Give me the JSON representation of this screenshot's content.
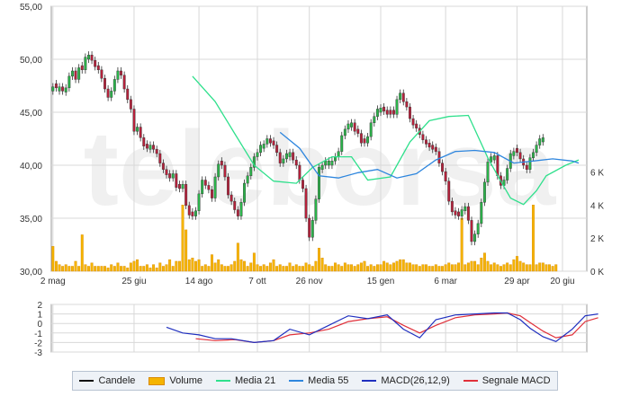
{
  "watermark": "teleborsa",
  "colors": {
    "candle_up": "#2bb34a",
    "candle_down": "#b5213b",
    "volume": "#f5b400",
    "ma21": "#2fe08c",
    "ma55": "#2e86de",
    "macd": "#1f2fbf",
    "signal": "#e0303a",
    "grid": "#d8d8d8"
  },
  "chart_data": [
    {
      "type": "candlestick",
      "title": "",
      "x_ticks": [
        "2 mag",
        "25 giu",
        "14 ago",
        "7 ott",
        "26 nov",
        "15 gen",
        "6 mar",
        "29 apr",
        "20 giu"
      ],
      "x_tick_index": [
        0,
        25,
        45,
        63,
        79,
        101,
        121,
        143,
        157
      ],
      "y_left_ticks": [
        "55,00",
        "50,00",
        "45,00",
        "40,00",
        "35,00",
        "30,00"
      ],
      "y_left_range": [
        30,
        55
      ],
      "y_right_ticks": [
        "6 K",
        "4 K",
        "2 K",
        "0 K"
      ],
      "y_right_range": [
        0,
        16
      ],
      "grid": true,
      "series": [
        {
          "name": "Candele",
          "kind": "ohlc",
          "close": [
            47.4,
            47.3,
            47.4,
            47.0,
            47.3,
            48.4,
            48.9,
            48.1,
            49.2,
            49.0,
            50.2,
            50.4,
            49.9,
            49.3,
            49.0,
            48.2,
            47.2,
            46.4,
            47.0,
            48.1,
            48.9,
            48.5,
            47.2,
            46.2,
            45.3,
            43.2,
            43.6,
            42.6,
            41.8,
            41.6,
            41.9,
            41.5,
            41.1,
            40.2,
            39.6,
            39.1,
            38.8,
            39.2,
            37.9,
            37.8,
            38.2,
            36.2,
            35.3,
            35.2,
            35.7,
            37.3,
            38.6,
            38.1,
            37.7,
            36.9,
            38.9,
            40.1,
            40.0,
            38.9,
            37.2,
            36.6,
            35.8,
            35.2,
            36.5,
            38.3,
            39.0,
            39.8,
            40.8,
            41.2,
            41.9,
            42.0,
            42.5,
            42.1,
            41.9,
            41.2,
            40.2,
            40.6,
            41.1,
            41.2,
            40.5,
            40.0,
            38.6,
            37.8,
            35.0,
            33.2,
            34.8,
            36.8,
            39.8,
            40.0,
            40.4,
            40.4,
            40.4,
            40.8,
            41.3,
            42.8,
            43.4,
            43.9,
            44.0,
            43.2,
            43.0,
            42.1,
            42.1,
            42.7,
            44.0,
            44.6,
            45.3,
            45.4,
            45.1,
            44.8,
            44.8,
            44.8,
            46.2,
            46.8,
            46.0,
            45.5,
            44.4,
            43.8,
            43.5,
            42.9,
            42.4,
            42.0,
            41.7,
            41.5,
            41.3,
            40.2,
            39.4,
            38.5,
            36.6,
            35.6,
            35.3,
            35.2,
            35.8,
            36.1,
            34.8,
            32.8,
            33.5,
            34.5,
            36.5,
            38.4,
            40.3,
            40.8,
            40.9,
            39.0,
            38.1,
            38.6,
            39.7,
            41.1,
            41.3,
            41.2,
            40.6,
            40.0,
            39.6,
            40.7,
            41.2,
            41.9,
            42.5,
            42.6
          ],
          "up": [
            1,
            0,
            1,
            0,
            1,
            1,
            1,
            0,
            1,
            0,
            1,
            1,
            0,
            0,
            0,
            0,
            0,
            0,
            1,
            1,
            1,
            0,
            0,
            0,
            0,
            0,
            1,
            0,
            0,
            0,
            1,
            0,
            0,
            0,
            0,
            0,
            0,
            1,
            0,
            0,
            1,
            0,
            0,
            0,
            1,
            1,
            1,
            0,
            0,
            0,
            1,
            1,
            0,
            0,
            0,
            0,
            0,
            0,
            1,
            1,
            1,
            1,
            1,
            1,
            1,
            1,
            1,
            0,
            0,
            0,
            0,
            1,
            1,
            1,
            0,
            0,
            0,
            0,
            0,
            0,
            1,
            1,
            1,
            1,
            1,
            1,
            1,
            1,
            1,
            1,
            1,
            1,
            1,
            0,
            0,
            0,
            0,
            1,
            1,
            1,
            1,
            1,
            0,
            0,
            0,
            0,
            1,
            1,
            0,
            0,
            0,
            0,
            0,
            0,
            0,
            0,
            0,
            0,
            0,
            0,
            0,
            0,
            0,
            0,
            0,
            0,
            1,
            1,
            0,
            0,
            1,
            1,
            1,
            1,
            1,
            1,
            1,
            0,
            0,
            1,
            1,
            1,
            1,
            0,
            0,
            0,
            0,
            1,
            1,
            1,
            1,
            1
          ]
        },
        {
          "name": "Volume",
          "kind": "bar",
          "values": [
            1.5,
            0.6,
            0.4,
            0.3,
            0.4,
            0.3,
            0.3,
            0.6,
            0.3,
            2.2,
            0.4,
            0.3,
            0.5,
            0.3,
            0.3,
            0.3,
            0.3,
            0.2,
            0.4,
            0.3,
            0.5,
            0.3,
            0.3,
            0.2,
            0.5,
            0.6,
            0.7,
            0.3,
            0.3,
            0.4,
            0.2,
            0.4,
            0.2,
            0.5,
            0.3,
            0.4,
            0.7,
            0.3,
            0.6,
            0.6,
            4.0,
            2.5,
            0.7,
            0.8,
            0.6,
            0.7,
            0.3,
            0.4,
            0.3,
            1.0,
            0.5,
            0.7,
            0.4,
            0.3,
            0.3,
            0.4,
            0.6,
            1.7,
            0.7,
            0.6,
            0.3,
            0.5,
            1.1,
            0.4,
            0.3,
            0.4,
            0.3,
            0.5,
            0.7,
            0.3,
            0.4,
            0.3,
            0.3,
            0.5,
            0.3,
            0.4,
            0.3,
            0.3,
            0.5,
            0.4,
            0.3,
            0.6,
            1.4,
            0.8,
            0.4,
            0.3,
            0.3,
            0.5,
            0.4,
            0.3,
            0.5,
            0.4,
            0.4,
            0.3,
            0.4,
            0.5,
            0.6,
            0.3,
            0.4,
            0.3,
            0.4,
            0.4,
            0.6,
            0.5,
            0.4,
            0.5,
            0.6,
            0.7,
            0.7,
            0.5,
            0.5,
            0.4,
            0.4,
            0.3,
            0.4,
            0.4,
            0.3,
            0.3,
            0.4,
            0.3,
            0.3,
            0.4,
            0.5,
            0.4,
            0.4,
            0.5,
            3.2,
            0.4,
            0.5,
            0.6,
            0.6,
            0.4,
            0.8,
            1.1,
            0.6,
            0.4,
            0.5,
            0.4,
            0.3,
            0.4,
            0.5,
            0.4,
            0.7,
            0.9,
            0.6,
            0.5,
            0.4,
            0.4,
            4.0,
            0.4,
            0.5,
            0.5,
            0.4,
            0.4,
            0.3,
            0.4
          ]
        },
        {
          "name": "Media 21",
          "kind": "line",
          "x_index": [
            43,
            50,
            56,
            62,
            68,
            75,
            80,
            86,
            92,
            97,
            104,
            110,
            116,
            122,
            128,
            134,
            138,
            141,
            145,
            149,
            152,
            158,
            162
          ],
          "values": [
            48.4,
            46.0,
            43.0,
            40.0,
            38.5,
            38.3,
            39.8,
            40.8,
            40.8,
            38.6,
            38.9,
            42.2,
            44.2,
            44.6,
            44.7,
            40.7,
            38.5,
            36.9,
            36.3,
            37.6,
            39.0,
            40.0,
            40.5
          ]
        },
        {
          "name": "Media 55",
          "kind": "line",
          "x_index": [
            70,
            76,
            82,
            88,
            94,
            100,
            106,
            112,
            118,
            124,
            130,
            136,
            142,
            148,
            154,
            160,
            162
          ],
          "values": [
            43.1,
            41.6,
            39.0,
            38.8,
            39.3,
            39.6,
            38.8,
            39.2,
            40.5,
            41.3,
            41.4,
            41.2,
            40.2,
            40.4,
            40.6,
            40.4,
            40.2
          ]
        }
      ]
    },
    {
      "type": "line",
      "title": "",
      "y_ticks": [
        "2",
        "1",
        "0",
        "-1",
        "-2",
        "-3"
      ],
      "y_range": [
        -3,
        2
      ],
      "grid": true,
      "series": [
        {
          "name": "MACD(26,12,9)",
          "x_index": [
            35,
            40,
            45,
            50,
            55,
            62,
            68,
            73,
            79,
            85,
            91,
            97,
            103,
            108,
            113,
            118,
            124,
            130,
            136,
            140,
            144,
            147,
            151,
            155,
            160,
            164,
            168
          ],
          "values": [
            -0.4,
            -1.0,
            -1.2,
            -1.6,
            -1.6,
            -2.0,
            -1.8,
            -0.6,
            -1.2,
            -0.2,
            0.8,
            0.5,
            0.9,
            -0.6,
            -1.5,
            0.4,
            0.9,
            1.0,
            1.1,
            1.1,
            0.4,
            -0.5,
            -1.4,
            -1.9,
            -0.6,
            0.8,
            1.0
          ]
        },
        {
          "name": "Segnale MACD",
          "x_index": [
            44,
            50,
            56,
            62,
            68,
            73,
            79,
            85,
            91,
            97,
            103,
            108,
            113,
            118,
            124,
            130,
            136,
            140,
            144,
            147,
            151,
            155,
            160,
            164,
            168
          ],
          "values": [
            -1.6,
            -1.8,
            -1.7,
            -2.0,
            -1.8,
            -1.2,
            -1.0,
            -0.6,
            0.2,
            0.5,
            0.7,
            -0.2,
            -1.0,
            -0.2,
            0.6,
            0.9,
            1.0,
            1.1,
            0.8,
            0.1,
            -0.8,
            -1.5,
            -1.2,
            0.2,
            0.6
          ]
        }
      ]
    }
  ],
  "legend": {
    "candele": "Candele",
    "volume": "Volume",
    "media21": "Media 21",
    "media55": "Media 55",
    "macd": "MACD(26,12,9)",
    "segnale": "Segnale MACD"
  }
}
